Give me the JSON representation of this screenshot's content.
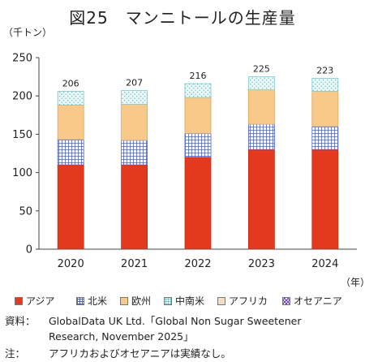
{
  "title": "図25　マンニトールの生産量",
  "chart_data": {
    "type": "bar",
    "stacked": true,
    "unit_label": "（千トン）",
    "x_unit_label": "（年）",
    "categories": [
      "2020",
      "2021",
      "2022",
      "2023",
      "2024"
    ],
    "series": [
      {
        "name": "アジア",
        "color": "#e33a1f",
        "values": [
          110,
          110,
          120,
          130,
          130
        ]
      },
      {
        "name": "北米",
        "color": "#9fb3e6",
        "values": [
          33,
          32,
          31,
          33,
          30
        ]
      },
      {
        "name": "欧州",
        "color": "#f7c98d",
        "values": [
          45,
          47,
          47,
          45,
          46
        ]
      },
      {
        "name": "中南米",
        "color": "#d6f1f2",
        "values": [
          18,
          18,
          18,
          17,
          17
        ]
      },
      {
        "name": "アフリカ",
        "color": "#f2dcc6",
        "values": [
          0,
          0,
          0,
          0,
          0
        ]
      },
      {
        "name": "オセアニア",
        "color": "#d9c8ec",
        "values": [
          0,
          0,
          0,
          0,
          0
        ]
      }
    ],
    "totals": [
      "206",
      "207",
      "216",
      "225",
      "223"
    ],
    "ylim": [
      0,
      250
    ],
    "yticks": [
      "0",
      "50",
      "100",
      "150",
      "200",
      "250"
    ],
    "grid": false,
    "legend_position": "bottom"
  },
  "notes": {
    "source_label": "資料：",
    "source_text_1": "GlobalData UK Ltd.「Global Non Sugar Sweetener",
    "source_text_2": "Research, November 2025」",
    "note_label": "注：",
    "note_text": "アフリカおよびオセアニアは実績なし。"
  }
}
